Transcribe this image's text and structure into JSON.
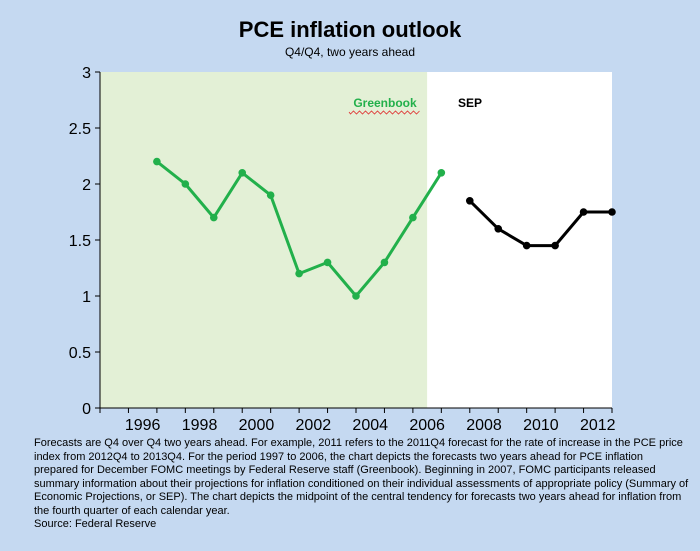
{
  "chart_data": {
    "type": "line",
    "title": "PCE inflation outlook",
    "subtitle": "Q4/Q4, two years ahead",
    "xlabel": "",
    "ylabel": "",
    "xlim": [
      1995,
      2013
    ],
    "ylim": [
      0,
      3
    ],
    "x_ticks": [
      "1996",
      "1998",
      "2000",
      "2002",
      "2004",
      "2006",
      "2008",
      "2010",
      "2012"
    ],
    "y_ticks": [
      "0",
      "0.5",
      "1",
      "1.5",
      "2",
      "2.5",
      "3"
    ],
    "grid": false,
    "series": [
      {
        "name": "Greenbook",
        "color": "#22b04b",
        "x": [
          1997,
          1998,
          1999,
          2000,
          2001,
          2002,
          2003,
          2004,
          2005,
          2006,
          2007
        ],
        "values": [
          2.2,
          2.0,
          1.7,
          2.1,
          1.9,
          1.2,
          1.3,
          1.0,
          1.3,
          1.7,
          2.1
        ]
      },
      {
        "name": "SEP",
        "color": "#000000",
        "x": [
          2008,
          2009,
          2010,
          2011,
          2012,
          2013
        ],
        "values": [
          1.85,
          1.6,
          1.45,
          1.45,
          1.75,
          1.75
        ]
      }
    ],
    "shaded_region": {
      "x_from": 1995,
      "x_to": 2006.5,
      "color": "#e3f0d6"
    }
  },
  "footnote": "Forecasts are Q4 over Q4 two years ahead. For example, 2011 refers to the 2011Q4 forecast for the rate of increase in the PCE price index from 2012Q4 to 2013Q4. For the period 1997 to 2006, the chart depicts the forecasts two years ahead for PCE inflation prepared for December FOMC meetings by Federal Reserve staff (Greenbook). Beginning in 2007, FOMC participants released summary information about their projections for inflation conditioned on their individual assessments of appropriate policy (Summary of Economic Projections, or SEP). The chart depicts the midpoint of the central tendency for forecasts two years ahead for inflation from the fourth quarter of each calendar year.",
  "source": "Source: Federal Reserve"
}
